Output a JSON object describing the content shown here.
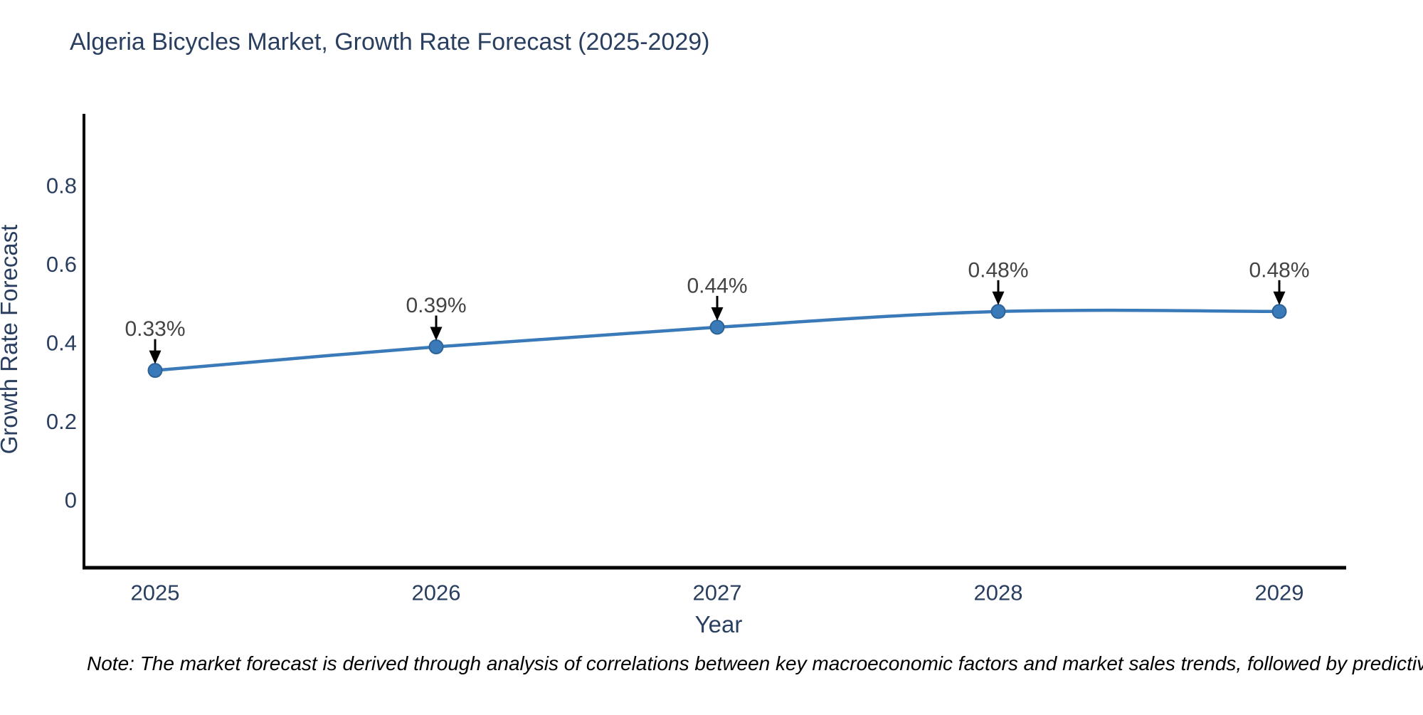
{
  "page": {
    "background": "#ffffff"
  },
  "title": {
    "text": "Algeria Bicycles Market, Growth Rate Forecast (2025-2029)",
    "color": "#2a3f5f"
  },
  "note": {
    "text": "Note: The market forecast is derived through analysis of correlations between key macroeconomic factors and market sales trends, followed by predictive modeling to project future sales",
    "color": "#000000"
  },
  "chart_data": {
    "type": "line",
    "title": "Algeria Bicycles Market, Growth Rate Forecast (2025-2029)",
    "xlabel": "Year",
    "ylabel": "Growth Rate Forecast",
    "categories": [
      "2025",
      "2026",
      "2027",
      "2028",
      "2029"
    ],
    "values": [
      0.33,
      0.39,
      0.44,
      0.48,
      0.48
    ],
    "point_labels": [
      "0.33%",
      "0.39%",
      "0.44%",
      "0.48%",
      "0.48%"
    ],
    "y_ticks": [
      0,
      0.2,
      0.4,
      0.6,
      0.8
    ],
    "ylim": [
      -0.18,
      0.98
    ],
    "line_shape": "spline",
    "grid": false,
    "legend_position": "none",
    "colors": {
      "line": "#3a7ab8",
      "marker_fill": "#3a7ab8",
      "marker_edge": "#2d6397",
      "axis": "#000000",
      "tick_text": "#2a3f5f",
      "annotation_text": "#444444",
      "arrow": "#000000"
    }
  }
}
